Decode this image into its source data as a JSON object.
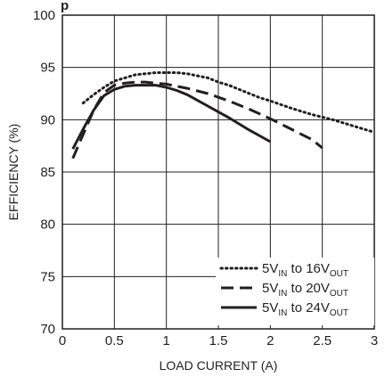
{
  "chart_data": {
    "type": "line",
    "title_fragment": "p",
    "xlabel": "LOAD CURRENT (A)",
    "ylabel": "EFFICIENCY (%)",
    "xlim": [
      0,
      3
    ],
    "ylim": [
      70,
      100
    ],
    "x_ticks": [
      0,
      0.5,
      1,
      1.5,
      2,
      2.5,
      3
    ],
    "x_tick_labels": [
      "0",
      "0.5",
      "1",
      "1.5",
      "2",
      "2.5",
      "3"
    ],
    "y_ticks": [
      70,
      75,
      80,
      85,
      90,
      95,
      100
    ],
    "y_tick_labels": [
      "70",
      "75",
      "80",
      "85",
      "90",
      "95",
      "100"
    ],
    "grid": true,
    "legend_position": "bottom-right",
    "series": [
      {
        "name": "5VIN to 16VOUT",
        "legend": {
          "pre": "5V",
          "sub1": "IN",
          "mid": " to 16V",
          "sub2": "OUT"
        },
        "style": "dotted",
        "x": [
          0.2,
          0.3,
          0.4,
          0.5,
          0.6,
          0.7,
          0.8,
          0.9,
          1.0,
          1.1,
          1.2,
          1.3,
          1.4,
          1.5,
          1.6,
          1.7,
          1.8,
          1.9,
          2.0,
          2.2,
          2.4,
          2.6,
          2.8,
          3.0
        ],
        "y": [
          91.6,
          92.4,
          93.1,
          93.7,
          94.0,
          94.3,
          94.4,
          94.5,
          94.5,
          94.5,
          94.4,
          94.2,
          94.0,
          93.6,
          93.3,
          92.9,
          92.5,
          92.1,
          91.8,
          91.1,
          90.5,
          90.0,
          89.4,
          88.8
        ]
      },
      {
        "name": "5VIN to 20VOUT",
        "legend": {
          "pre": "5V",
          "sub1": "IN",
          "mid": " to 20V",
          "sub2": "OUT"
        },
        "style": "dashed",
        "x": [
          0.1,
          0.2,
          0.3,
          0.4,
          0.5,
          0.6,
          0.7,
          0.8,
          0.9,
          1.0,
          1.2,
          1.4,
          1.6,
          1.8,
          2.0,
          2.2,
          2.4,
          2.5
        ],
        "y": [
          86.3,
          88.6,
          90.9,
          92.6,
          93.3,
          93.5,
          93.6,
          93.6,
          93.5,
          93.4,
          93.0,
          92.5,
          91.8,
          91.0,
          90.1,
          89.1,
          88.1,
          87.3
        ]
      },
      {
        "name": "5VIN to 24VOUT",
        "legend": {
          "pre": "5V",
          "sub1": "IN",
          "mid": " to 24V",
          "sub2": "OUT"
        },
        "style": "solid",
        "x": [
          0.1,
          0.2,
          0.3,
          0.4,
          0.5,
          0.6,
          0.7,
          0.8,
          0.9,
          1.0,
          1.1,
          1.2,
          1.4,
          1.6,
          1.8,
          2.0
        ],
        "y": [
          87.2,
          89.1,
          90.9,
          92.3,
          92.9,
          93.2,
          93.3,
          93.3,
          93.3,
          93.1,
          92.8,
          92.4,
          91.3,
          90.2,
          89.0,
          87.9
        ]
      }
    ]
  }
}
